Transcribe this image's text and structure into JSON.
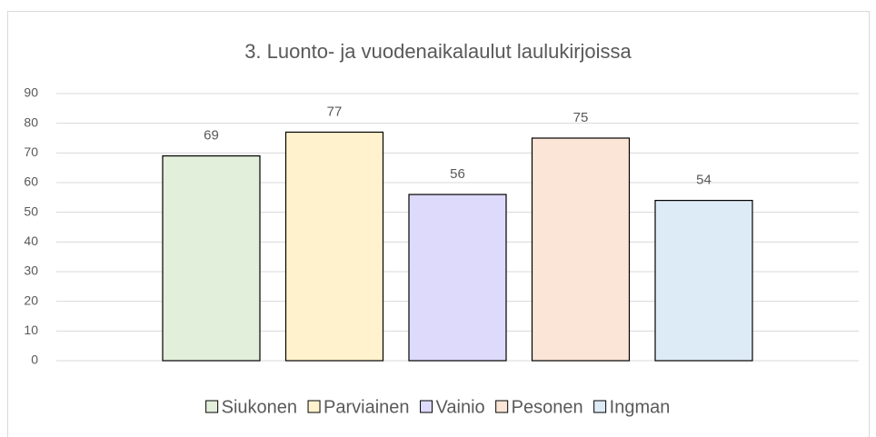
{
  "chart_data": {
    "type": "bar",
    "title": "3. Luonto- ja vuodenaikalaulut  laulukirjoissa",
    "categories": [
      null
    ],
    "series": [
      {
        "name": "Siukonen",
        "color": "#e2efda",
        "values": [
          69
        ]
      },
      {
        "name": "Parviainen",
        "color": "#fff2cc",
        "values": [
          77
        ]
      },
      {
        "name": "Vainio",
        "color": "#dedafc",
        "values": [
          56
        ]
      },
      {
        "name": "Pesonen",
        "color": "#fbe5d6",
        "values": [
          75
        ]
      },
      {
        "name": "Ingman",
        "color": "#ddebf7",
        "values": [
          54
        ]
      }
    ],
    "ylim": [
      0,
      90
    ],
    "yticks": [
      0,
      10,
      20,
      30,
      40,
      50,
      60,
      70,
      80,
      90
    ],
    "grid": true,
    "legend": "bottom"
  }
}
